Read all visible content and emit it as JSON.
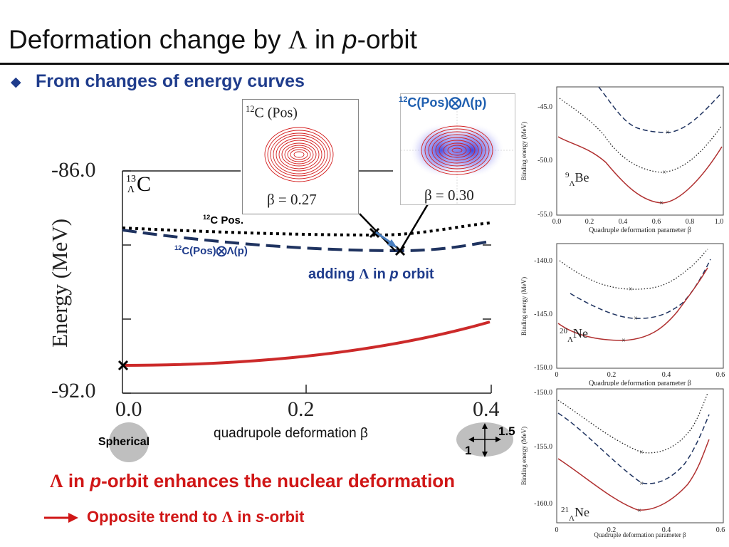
{
  "slide": {
    "title_prefix": "Deformation change by ",
    "title_lambda": "Λ",
    "title_mid": " in ",
    "title_p": "p",
    "title_suffix": "-orbit",
    "bullet_icon": "diamond-bullet-icon",
    "subtitle": "From changes of energy curves"
  },
  "main_plot": {
    "nucleus_mass": "13",
    "nucleus_sub": "Λ",
    "nucleus_symbol": "C",
    "ylabel": "Energy (MeV)",
    "xlabel": "quadrupole deformation β",
    "ytick_top": "-86.0",
    "ytick_bottom": "-92.0",
    "xtick_0": "0.0",
    "xtick_1": "0.2",
    "xtick_2": "0.4",
    "label_12c_pos_mass": "12",
    "label_12c_pos_text": "C Pos.",
    "label_plambda_mass": "12",
    "label_plambda_text": "C(Pos)⨂Λ(p)",
    "adding_prefix": "adding  ",
    "adding_lambda": "Λ",
    "adding_mid": " in ",
    "adding_p": "p",
    "adding_suffix": " orbit"
  },
  "density_boxes": {
    "box1_mass": "12",
    "box1_text": "C (Pos)",
    "box1_beta": "β = 0.27",
    "box2_mass": "12",
    "box2_text": "C(Pos)⨂Λ(p)",
    "box2_beta": "β = 0.30"
  },
  "shape_icons": {
    "spherical_label": "Spherical",
    "axis_long": "1.5",
    "axis_short": "1"
  },
  "conclusions": {
    "line1_lambda": "Λ",
    "line1_mid": " in ",
    "line1_p": "p",
    "line1_suffix": "-orbit enhances the nuclear deformation",
    "line2_prefix": "Opposite trend to ",
    "line2_lambda": "Λ",
    "line2_mid": " in ",
    "line2_s": "s",
    "line2_suffix": "-orbit"
  },
  "side_panels": {
    "be": {
      "mass": "9",
      "sub": "Λ",
      "symbol": "Be",
      "yticks": [
        "-45.0",
        "-50.0",
        "-55.0"
      ],
      "xticks": [
        "0.0",
        "0.2",
        "0.4",
        "0.6",
        "0.8",
        "1.0"
      ],
      "ylabel": "Binding energy (MeV)",
      "xlabel": "Quadruple deformation parameter β"
    },
    "ne20": {
      "mass": "20",
      "sub": "Λ",
      "symbol": "Ne",
      "yticks": [
        "-140.0",
        "-145.0",
        "-150.0"
      ],
      "xticks": [
        "0",
        "0.2",
        "0.4",
        "0.6"
      ],
      "ylabel": "Binding energy (MeV)",
      "xlabel": "Quadruple deformation parameter β"
    },
    "ne21": {
      "mass": "21",
      "sub": "Λ",
      "symbol": "Ne",
      "yticks": [
        "-150.0",
        "-155.0",
        "-160.0"
      ],
      "xticks": [
        "0",
        "0.2",
        "0.4",
        "0.6"
      ],
      "ylabel": "Binding energy (MeV)",
      "xlabel": "Quadruple deformation parameter β"
    }
  },
  "colors": {
    "title_blue": "#1f3c8c",
    "conclusion_red": "#d01616",
    "curve_red": "#cc2a2a",
    "curve_navy": "#1f3360",
    "curve_black": "#000000",
    "arrow_blue": "#4a7fc0"
  }
}
